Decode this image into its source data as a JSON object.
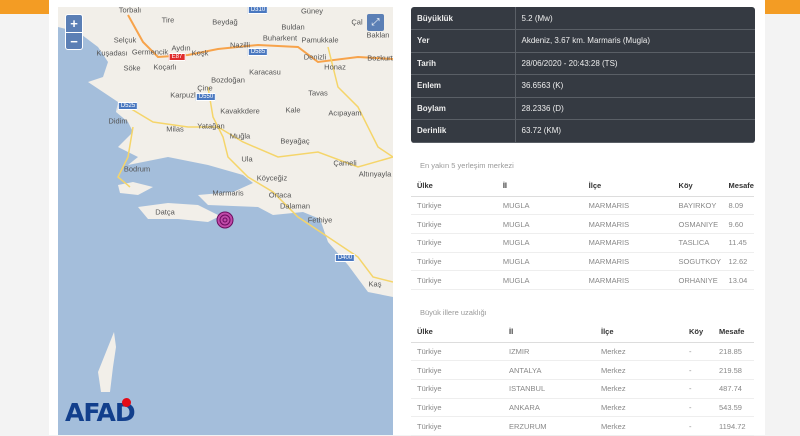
{
  "map": {
    "zoom_in": "+",
    "zoom_out": "−",
    "fullscreen_icon": "⤢",
    "logo": "AFAD",
    "colors": {
      "sea": "#a4bedb",
      "land": "#f2efe9",
      "epicenter": "#9b1f8a"
    },
    "places": [
      "Torbalı",
      "Tire",
      "Beydağ",
      "Güney",
      "Çal",
      "Buldan",
      "Baklan",
      "Selçuk",
      "Buharkent",
      "Pamukkale",
      "Aydın",
      "Kuşadası",
      "Germencik",
      "Nazilli",
      "Koşk",
      "Denizli",
      "Bozkurt",
      "Söke",
      "Koçarlı",
      "Honaz",
      "Karacasu",
      "Bozdoğan",
      "Çine",
      "Tavas",
      "Karpuzlu",
      "Kale",
      "Kavakkdere",
      "Acıpayam",
      "Didim",
      "Milas",
      "Yatağan",
      "Muğla",
      "Beyağaç",
      "Ula",
      "Çameli",
      "Bodrum",
      "Altınyayla",
      "Köyceğiz",
      "Marmaris",
      "Ortaca",
      "Dalaman",
      "Datça",
      "Fethiye",
      "Kaş"
    ],
    "roads": [
      "D310",
      "E87",
      "D585",
      "D550",
      "D525",
      "D400"
    ]
  },
  "details": [
    {
      "label": "Büyüklük",
      "value": "5.2 (Mw)"
    },
    {
      "label": "Yer",
      "value": "Akdeniz, 3.67 km. Marmaris (Mugla)"
    },
    {
      "label": "Tarih",
      "value": "28/06/2020 - 20:43:28 (TS)"
    },
    {
      "label": "Enlem",
      "value": "36.6563 (K)"
    },
    {
      "label": "Boylam",
      "value": "28.2336 (D)"
    },
    {
      "label": "Derinlik",
      "value": "63.72 (KM)"
    }
  ],
  "nearest": {
    "title": "En yakın 5 yerleşim merkezi",
    "headers": [
      "Ülke",
      "İl",
      "İlçe",
      "Köy",
      "Mesafe"
    ],
    "rows": [
      [
        "Türkiye",
        "MUGLA",
        "MARMARIS",
        "BAYIRKOY",
        "8.09"
      ],
      [
        "Türkiye",
        "MUGLA",
        "MARMARIS",
        "OSMANIYE",
        "9.60"
      ],
      [
        "Türkiye",
        "MUGLA",
        "MARMARIS",
        "TASLICA",
        "11.45"
      ],
      [
        "Türkiye",
        "MUGLA",
        "MARMARIS",
        "SOGUTKOY",
        "12.62"
      ],
      [
        "Türkiye",
        "MUGLA",
        "MARMARIS",
        "ORHANIYE",
        "13.04"
      ]
    ]
  },
  "cities": {
    "title": "Büyük illere uzaklığı",
    "headers": [
      "Ülke",
      "İl",
      "İlçe",
      "Köy",
      "Mesafe"
    ],
    "rows": [
      [
        "Türkiye",
        "IZMIR",
        "Merkez",
        "-",
        "218.85"
      ],
      [
        "Türkiye",
        "ANTALYA",
        "Merkez",
        "-",
        "219.58"
      ],
      [
        "Türkiye",
        "ISTANBUL",
        "Merkez",
        "-",
        "487.74"
      ],
      [
        "Türkiye",
        "ANKARA",
        "Merkez",
        "-",
        "543.59"
      ],
      [
        "Türkiye",
        "ERZURUM",
        "Merkez",
        "-",
        "1194.72"
      ]
    ]
  }
}
